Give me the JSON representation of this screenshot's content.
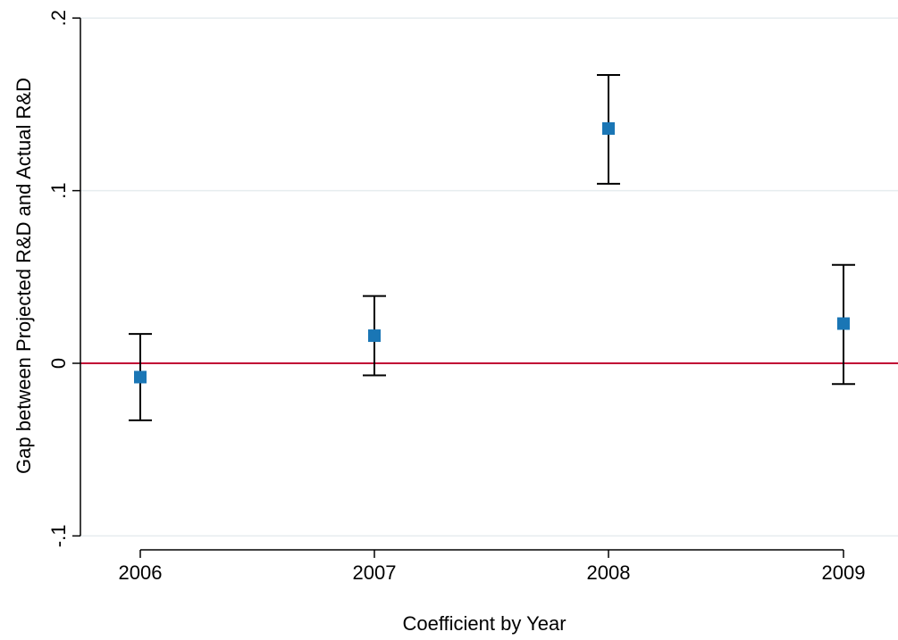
{
  "chart_data": {
    "type": "scatter",
    "xlabel": "Coefficient by Year",
    "ylabel": "Gap between Projected R&D and Actual R&D",
    "categories": [
      "2006",
      "2007",
      "2008",
      "2009"
    ],
    "ylim": [
      -0.1,
      0.2
    ],
    "yticks": [
      -0.1,
      0,
      0.1,
      0.2
    ],
    "ytick_labels": [
      "-.1",
      "0",
      ".1",
      ".2"
    ],
    "grid": true,
    "legend": "none",
    "reference_line": {
      "y": 0,
      "color": "#c10534"
    },
    "series": [
      {
        "values": [
          -0.008,
          0.016,
          0.136,
          0.023
        ],
        "ci_low": [
          -0.033,
          -0.007,
          0.104,
          -0.012
        ],
        "ci_high": [
          0.017,
          0.039,
          0.167,
          0.057
        ],
        "marker": "square",
        "color": "#1a76b5"
      }
    ],
    "colors": {
      "marker": "#1a76b5",
      "errorbar": "#000000",
      "zero_line": "#c10534",
      "grid": "#e6ecef"
    }
  }
}
